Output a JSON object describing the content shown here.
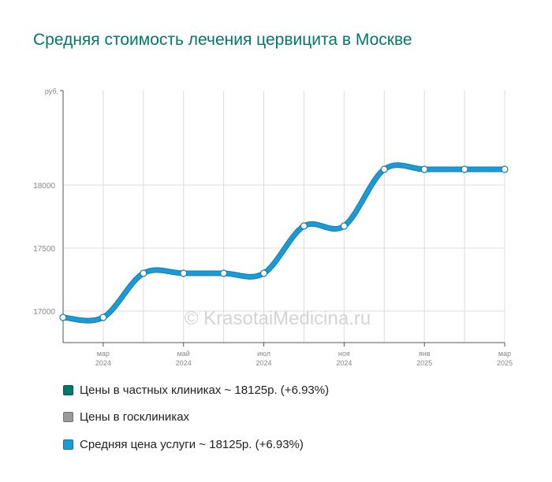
{
  "title": "Средняя стоимость лечения цервицита в Москве",
  "watermark": "© KrasotaiMedicina.ru",
  "chart_data": {
    "type": "line",
    "y_unit": "руб.",
    "ylim": [
      16750,
      18750
    ],
    "y_ticks": [
      "17000",
      "17500",
      "18000"
    ],
    "x_tick_labels": [
      {
        "month": "мар",
        "year": "2024"
      },
      {
        "month": "май",
        "year": "2024"
      },
      {
        "month": "июл",
        "year": "2024"
      },
      {
        "month": "ноя",
        "year": "2024"
      },
      {
        "month": "янв",
        "year": "2025"
      },
      {
        "month": "мар",
        "year": "2025"
      }
    ],
    "grid": true,
    "series": [
      {
        "name": "Средняя цена услуги",
        "color": "#1a9ad6",
        "values": [
          16950,
          16950,
          17300,
          17300,
          17300,
          17300,
          17675,
          17675,
          18125,
          18125,
          18125,
          18125
        ]
      }
    ]
  },
  "legend": [
    {
      "label": "Цены в частных клиниках ~ 18125р. (+6.93%)",
      "color": "#00796b"
    },
    {
      "label": "Цены в госклиниках",
      "color": "#999999"
    },
    {
      "label": "Средняя цена услуги ~ 18125р. (+6.93%)",
      "color": "#1a9ad6"
    }
  ]
}
